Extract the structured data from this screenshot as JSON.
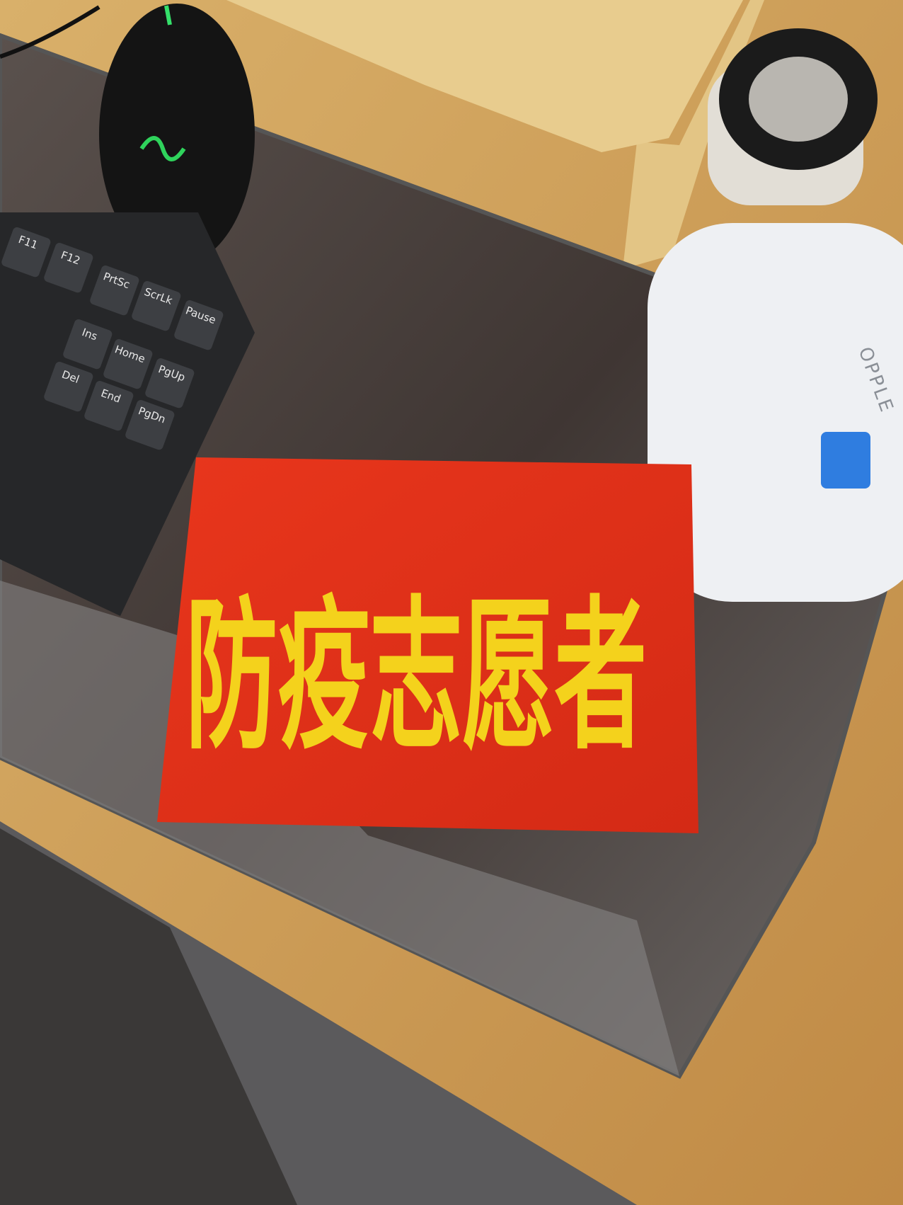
{
  "armband": {
    "text": "防疫志愿者"
  },
  "keyboard": {
    "keys": [
      "F11",
      "F12",
      "PrtSc",
      "ScrLk",
      "Pause",
      "Ins",
      "Home",
      "PgUp",
      "Del",
      "End",
      "PgDn"
    ]
  },
  "lamp": {
    "brand": "OPPLE"
  }
}
